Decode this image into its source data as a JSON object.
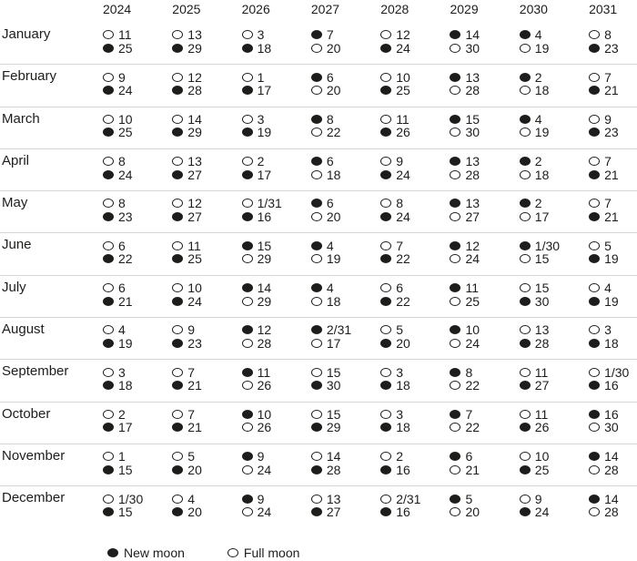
{
  "chart_data": {
    "type": "table",
    "columns": [
      "2024",
      "2025",
      "2026",
      "2027",
      "2028",
      "2029",
      "2030",
      "2031"
    ],
    "legend": [
      {
        "symbol": "new-moon",
        "label": "New moon"
      },
      {
        "symbol": "full-moon",
        "label": "Full moon"
      }
    ],
    "rows": [
      {
        "month": "January",
        "cells": [
          [
            [
              "full",
              "11"
            ],
            [
              "new",
              "25"
            ]
          ],
          [
            [
              "full",
              "13"
            ],
            [
              "new",
              "29"
            ]
          ],
          [
            [
              "full",
              "3"
            ],
            [
              "new",
              "18"
            ]
          ],
          [
            [
              "new",
              "7"
            ],
            [
              "full",
              "20"
            ]
          ],
          [
            [
              "full",
              "12"
            ],
            [
              "new",
              "24"
            ]
          ],
          [
            [
              "new",
              "14"
            ],
            [
              "full",
              "30"
            ]
          ],
          [
            [
              "new",
              "4"
            ],
            [
              "full",
              "19"
            ]
          ],
          [
            [
              "full",
              "8"
            ],
            [
              "new",
              "23"
            ]
          ]
        ]
      },
      {
        "month": "February",
        "cells": [
          [
            [
              "full",
              "9"
            ],
            [
              "new",
              "24"
            ]
          ],
          [
            [
              "full",
              "12"
            ],
            [
              "new",
              "28"
            ]
          ],
          [
            [
              "full",
              "1"
            ],
            [
              "new",
              "17"
            ]
          ],
          [
            [
              "new",
              "6"
            ],
            [
              "full",
              "20"
            ]
          ],
          [
            [
              "full",
              "10"
            ],
            [
              "new",
              "25"
            ]
          ],
          [
            [
              "new",
              "13"
            ],
            [
              "full",
              "28"
            ]
          ],
          [
            [
              "new",
              "2"
            ],
            [
              "full",
              "18"
            ]
          ],
          [
            [
              "full",
              "7"
            ],
            [
              "new",
              "21"
            ]
          ]
        ]
      },
      {
        "month": "March",
        "cells": [
          [
            [
              "full",
              "10"
            ],
            [
              "new",
              "25"
            ]
          ],
          [
            [
              "full",
              "14"
            ],
            [
              "new",
              "29"
            ]
          ],
          [
            [
              "full",
              "3"
            ],
            [
              "new",
              "19"
            ]
          ],
          [
            [
              "new",
              "8"
            ],
            [
              "full",
              "22"
            ]
          ],
          [
            [
              "full",
              "11"
            ],
            [
              "new",
              "26"
            ]
          ],
          [
            [
              "new",
              "15"
            ],
            [
              "full",
              "30"
            ]
          ],
          [
            [
              "new",
              "4"
            ],
            [
              "full",
              "19"
            ]
          ],
          [
            [
              "full",
              "9"
            ],
            [
              "new",
              "23"
            ]
          ]
        ]
      },
      {
        "month": "April",
        "cells": [
          [
            [
              "full",
              "8"
            ],
            [
              "new",
              "24"
            ]
          ],
          [
            [
              "full",
              "13"
            ],
            [
              "new",
              "27"
            ]
          ],
          [
            [
              "full",
              "2"
            ],
            [
              "new",
              "17"
            ]
          ],
          [
            [
              "new",
              "6"
            ],
            [
              "full",
              "18"
            ]
          ],
          [
            [
              "full",
              "9"
            ],
            [
              "new",
              "24"
            ]
          ],
          [
            [
              "new",
              "13"
            ],
            [
              "full",
              "28"
            ]
          ],
          [
            [
              "new",
              "2"
            ],
            [
              "full",
              "18"
            ]
          ],
          [
            [
              "full",
              "7"
            ],
            [
              "new",
              "21"
            ]
          ]
        ]
      },
      {
        "month": "May",
        "cells": [
          [
            [
              "full",
              "8"
            ],
            [
              "new",
              "23"
            ]
          ],
          [
            [
              "full",
              "12"
            ],
            [
              "new",
              "27"
            ]
          ],
          [
            [
              "full",
              "1/31"
            ],
            [
              "new",
              "16"
            ]
          ],
          [
            [
              "new",
              "6"
            ],
            [
              "full",
              "20"
            ]
          ],
          [
            [
              "full",
              "8"
            ],
            [
              "new",
              "24"
            ]
          ],
          [
            [
              "new",
              "13"
            ],
            [
              "full",
              "27"
            ]
          ],
          [
            [
              "new",
              "2"
            ],
            [
              "full",
              "17"
            ]
          ],
          [
            [
              "full",
              "7"
            ],
            [
              "new",
              "21"
            ]
          ]
        ]
      },
      {
        "month": "June",
        "cells": [
          [
            [
              "full",
              "6"
            ],
            [
              "new",
              "22"
            ]
          ],
          [
            [
              "full",
              "11"
            ],
            [
              "new",
              "25"
            ]
          ],
          [
            [
              "new",
              "15"
            ],
            [
              "full",
              "29"
            ]
          ],
          [
            [
              "new",
              "4"
            ],
            [
              "full",
              "19"
            ]
          ],
          [
            [
              "full",
              "7"
            ],
            [
              "new",
              "22"
            ]
          ],
          [
            [
              "new",
              "12"
            ],
            [
              "full",
              "24"
            ]
          ],
          [
            [
              "new",
              "1/30"
            ],
            [
              "full",
              "15"
            ]
          ],
          [
            [
              "full",
              "5"
            ],
            [
              "new",
              "19"
            ]
          ]
        ]
      },
      {
        "month": "July",
        "cells": [
          [
            [
              "full",
              "6"
            ],
            [
              "new",
              "21"
            ]
          ],
          [
            [
              "full",
              "10"
            ],
            [
              "new",
              "24"
            ]
          ],
          [
            [
              "new",
              "14"
            ],
            [
              "full",
              "29"
            ]
          ],
          [
            [
              "new",
              "4"
            ],
            [
              "full",
              "18"
            ]
          ],
          [
            [
              "full",
              "6"
            ],
            [
              "new",
              "22"
            ]
          ],
          [
            [
              "new",
              "11"
            ],
            [
              "full",
              "25"
            ]
          ],
          [
            [
              "full",
              "15"
            ],
            [
              "new",
              "30"
            ]
          ],
          [
            [
              "full",
              "4"
            ],
            [
              "new",
              "19"
            ]
          ]
        ]
      },
      {
        "month": "August",
        "cells": [
          [
            [
              "full",
              "4"
            ],
            [
              "new",
              "19"
            ]
          ],
          [
            [
              "full",
              "9"
            ],
            [
              "new",
              "23"
            ]
          ],
          [
            [
              "new",
              "12"
            ],
            [
              "full",
              "28"
            ]
          ],
          [
            [
              "new",
              "2/31"
            ],
            [
              "full",
              "17"
            ]
          ],
          [
            [
              "full",
              "5"
            ],
            [
              "new",
              "20"
            ]
          ],
          [
            [
              "new",
              "10"
            ],
            [
              "full",
              "24"
            ]
          ],
          [
            [
              "full",
              "13"
            ],
            [
              "new",
              "28"
            ]
          ],
          [
            [
              "full",
              "3"
            ],
            [
              "new",
              "18"
            ]
          ]
        ]
      },
      {
        "month": "September",
        "cells": [
          [
            [
              "full",
              "3"
            ],
            [
              "new",
              "18"
            ]
          ],
          [
            [
              "full",
              "7"
            ],
            [
              "new",
              "21"
            ]
          ],
          [
            [
              "new",
              "11"
            ],
            [
              "full",
              "26"
            ]
          ],
          [
            [
              "full",
              "15"
            ],
            [
              "new",
              "30"
            ]
          ],
          [
            [
              "full",
              "3"
            ],
            [
              "new",
              "18"
            ]
          ],
          [
            [
              "new",
              "8"
            ],
            [
              "full",
              "22"
            ]
          ],
          [
            [
              "full",
              "11"
            ],
            [
              "new",
              "27"
            ]
          ],
          [
            [
              "full",
              "1/30"
            ],
            [
              "new",
              "16"
            ]
          ]
        ]
      },
      {
        "month": "October",
        "cells": [
          [
            [
              "full",
              "2"
            ],
            [
              "new",
              "17"
            ]
          ],
          [
            [
              "full",
              "7"
            ],
            [
              "new",
              "21"
            ]
          ],
          [
            [
              "new",
              "10"
            ],
            [
              "full",
              "26"
            ]
          ],
          [
            [
              "full",
              "15"
            ],
            [
              "new",
              "29"
            ]
          ],
          [
            [
              "full",
              "3"
            ],
            [
              "new",
              "18"
            ]
          ],
          [
            [
              "new",
              "7"
            ],
            [
              "full",
              "22"
            ]
          ],
          [
            [
              "full",
              "11"
            ],
            [
              "new",
              "26"
            ]
          ],
          [
            [
              "new",
              "16"
            ],
            [
              "full",
              "30"
            ]
          ]
        ]
      },
      {
        "month": "November",
        "cells": [
          [
            [
              "full",
              "1"
            ],
            [
              "new",
              "15"
            ]
          ],
          [
            [
              "full",
              "5"
            ],
            [
              "new",
              "20"
            ]
          ],
          [
            [
              "new",
              "9"
            ],
            [
              "full",
              "24"
            ]
          ],
          [
            [
              "full",
              "14"
            ],
            [
              "new",
              "28"
            ]
          ],
          [
            [
              "full",
              "2"
            ],
            [
              "new",
              "16"
            ]
          ],
          [
            [
              "new",
              "6"
            ],
            [
              "full",
              "21"
            ]
          ],
          [
            [
              "full",
              "10"
            ],
            [
              "new",
              "25"
            ]
          ],
          [
            [
              "new",
              "14"
            ],
            [
              "full",
              "28"
            ]
          ]
        ]
      },
      {
        "month": "December",
        "cells": [
          [
            [
              "full",
              "1/30"
            ],
            [
              "new",
              "15"
            ]
          ],
          [
            [
              "full",
              "4"
            ],
            [
              "new",
              "20"
            ]
          ],
          [
            [
              "new",
              "9"
            ],
            [
              "full",
              "24"
            ]
          ],
          [
            [
              "full",
              "13"
            ],
            [
              "new",
              "27"
            ]
          ],
          [
            [
              "full",
              "2/31"
            ],
            [
              "new",
              "16"
            ]
          ],
          [
            [
              "new",
              "5"
            ],
            [
              "full",
              "20"
            ]
          ],
          [
            [
              "full",
              "9"
            ],
            [
              "new",
              "24"
            ]
          ],
          [
            [
              "new",
              "14"
            ],
            [
              "full",
              "28"
            ]
          ]
        ]
      }
    ]
  },
  "colors": {
    "text": "#1d1d1b",
    "divider": "#d4d4d4"
  }
}
